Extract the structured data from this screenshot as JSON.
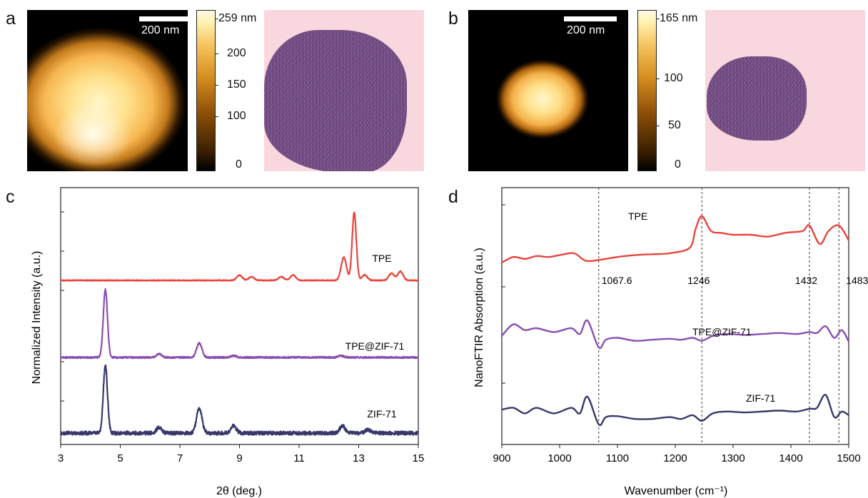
{
  "panels": {
    "a": {
      "label": "a",
      "scalebar": "200 nm",
      "colorbar_ticks": [
        "259 nm",
        "200",
        "150",
        "100",
        "0"
      ]
    },
    "b": {
      "label": "b",
      "scalebar": "200 nm",
      "colorbar_ticks": [
        "165 nm",
        "100",
        "50",
        "0"
      ]
    },
    "c": {
      "label": "c"
    },
    "d": {
      "label": "d"
    }
  },
  "chart_data": [
    {
      "type": "line",
      "panel": "c",
      "xlabel": "2θ (deg.)",
      "ylabel": "Normalized Intensity (a.u.)",
      "xlim": [
        3,
        15
      ],
      "xticks": [
        3,
        5,
        7,
        9,
        11,
        13,
        15
      ],
      "colors": {
        "TPE": "#e8453c",
        "TPE@ZIF-71": "#8a4fb0",
        "ZIF-71": "#36386b"
      },
      "series": [
        {
          "name": "TPE",
          "peaks": [
            [
              9.0,
              0.03
            ],
            [
              9.4,
              0.02
            ],
            [
              10.4,
              0.02
            ],
            [
              10.8,
              0.03
            ],
            [
              12.5,
              0.13
            ],
            [
              12.85,
              0.38
            ],
            [
              13.2,
              0.03
            ],
            [
              14.1,
              0.04
            ],
            [
              14.4,
              0.05
            ]
          ]
        },
        {
          "name": "TPE@ZIF-71",
          "peaks": [
            [
              4.5,
              0.38
            ],
            [
              6.3,
              0.02
            ],
            [
              7.65,
              0.08
            ],
            [
              8.8,
              0.01
            ],
            [
              12.4,
              0.01
            ]
          ]
        },
        {
          "name": "ZIF-71",
          "peaks": [
            [
              4.5,
              0.38
            ],
            [
              6.3,
              0.03
            ],
            [
              7.65,
              0.14
            ],
            [
              8.8,
              0.04
            ],
            [
              12.45,
              0.04
            ],
            [
              13.3,
              0.02
            ]
          ]
        }
      ]
    },
    {
      "type": "line",
      "panel": "d",
      "xlabel": "Wavenumber (cm⁻¹)",
      "ylabel": "NanoFTIR Absorption (a.u.)",
      "xlim": [
        900,
        1500
      ],
      "xticks": [
        900,
        1000,
        1100,
        1200,
        1300,
        1400,
        1500
      ],
      "vlines": [
        1067.6,
        1246,
        1432,
        1483
      ],
      "vline_labels": [
        "1067.6",
        "1246",
        "1432",
        "1483"
      ],
      "colors": {
        "TPE": "#e8453c",
        "TPE@ZIF-71": "#8a4fb0",
        "ZIF-71": "#36386b"
      },
      "series": [
        {
          "name": "TPE",
          "x": [
            900,
            920,
            940,
            960,
            980,
            1000,
            1025,
            1045,
            1070,
            1100,
            1130,
            1160,
            1190,
            1225,
            1235,
            1246,
            1262,
            1280,
            1300,
            1330,
            1360,
            1390,
            1420,
            1432,
            1450,
            1465,
            1483,
            1500
          ],
          "y": [
            0.0,
            0.03,
            0.02,
            0.035,
            0.03,
            0.04,
            0.05,
            0.01,
            0.015,
            0.03,
            0.04,
            0.045,
            0.05,
            0.08,
            0.18,
            0.25,
            0.17,
            0.16,
            0.15,
            0.15,
            0.14,
            0.16,
            0.17,
            0.2,
            0.1,
            0.17,
            0.2,
            0.12
          ]
        },
        {
          "name": "TPE@ZIF-71",
          "x": [
            900,
            920,
            940,
            960,
            990,
            1020,
            1035,
            1048,
            1067.6,
            1080,
            1100,
            1130,
            1160,
            1190,
            1210,
            1230,
            1246,
            1265,
            1290,
            1320,
            1350,
            1380,
            1410,
            1432,
            1445,
            1460,
            1475,
            1488,
            1500
          ],
          "y": [
            0.06,
            0.12,
            0.09,
            0.1,
            0.08,
            0.1,
            0.07,
            0.14,
            0.0,
            0.04,
            0.05,
            0.035,
            0.04,
            0.045,
            0.04,
            0.05,
            0.035,
            0.06,
            0.07,
            0.065,
            0.07,
            0.075,
            0.07,
            0.08,
            0.075,
            0.11,
            0.05,
            0.09,
            0.03
          ]
        },
        {
          "name": "ZIF-71",
          "x": [
            900,
            920,
            940,
            960,
            990,
            1020,
            1035,
            1048,
            1067.6,
            1080,
            1100,
            1130,
            1160,
            1190,
            1210,
            1230,
            1246,
            1265,
            1290,
            1320,
            1350,
            1380,
            1410,
            1432,
            1445,
            1460,
            1475,
            1488,
            1500
          ],
          "y": [
            0.08,
            0.09,
            0.06,
            0.09,
            0.06,
            0.09,
            0.06,
            0.15,
            0.0,
            0.04,
            0.045,
            0.03,
            0.03,
            0.04,
            0.03,
            0.05,
            0.02,
            0.06,
            0.07,
            0.065,
            0.07,
            0.075,
            0.07,
            0.085,
            0.09,
            0.16,
            0.04,
            0.07,
            0.05
          ]
        }
      ]
    }
  ]
}
